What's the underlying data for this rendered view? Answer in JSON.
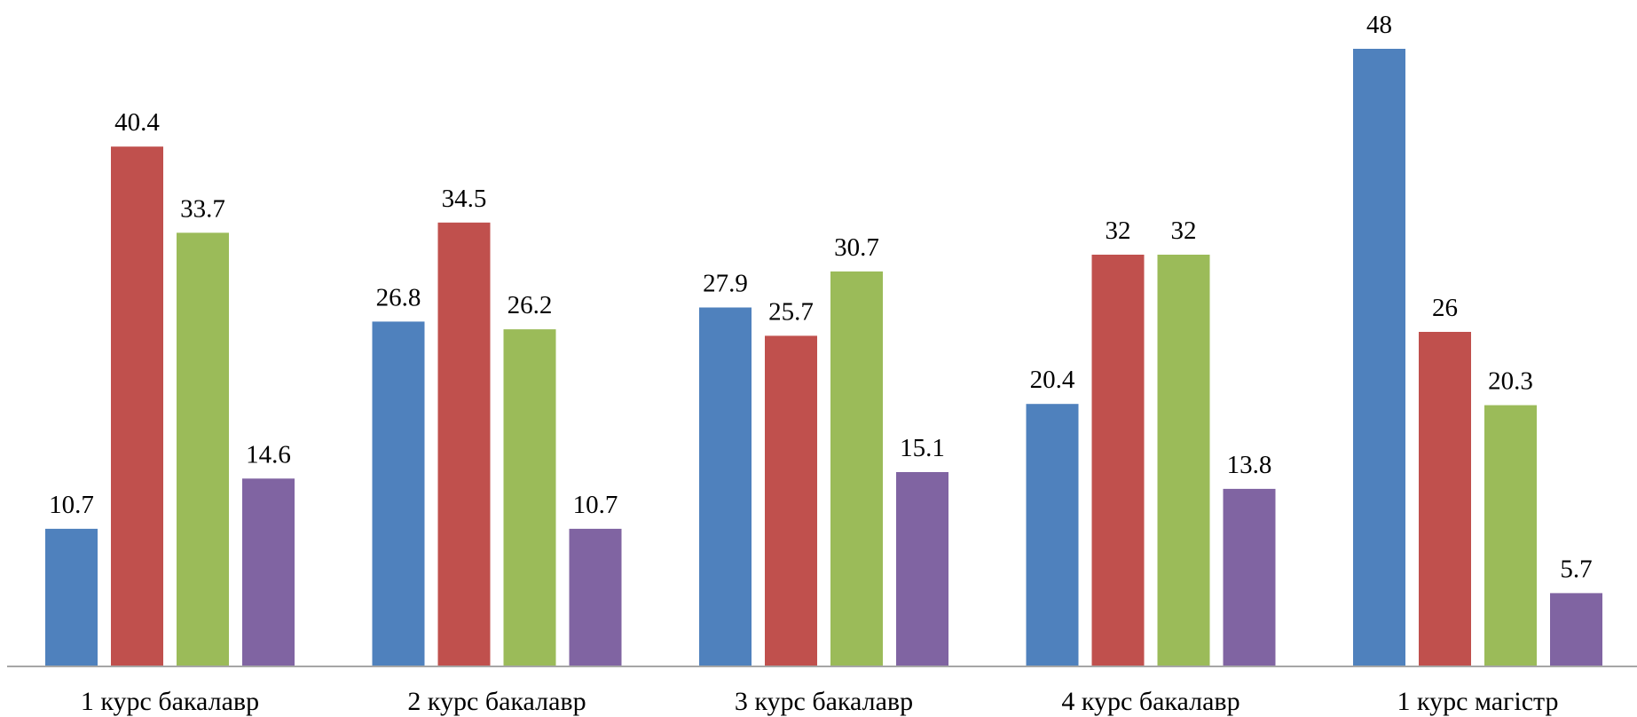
{
  "chart_data": {
    "type": "bar",
    "categories": [
      "1 курс бакалавр",
      "2 курс бакалавр",
      "3 курс бакалавр",
      "4 курс бакалавр",
      "1 курс магістр"
    ],
    "series": [
      {
        "color": "#4F81BD",
        "values": [
          10.7,
          26.8,
          27.9,
          20.4,
          48
        ]
      },
      {
        "color": "#C0504D",
        "values": [
          40.4,
          34.5,
          25.7,
          32,
          26
        ]
      },
      {
        "color": "#9BBB59",
        "values": [
          33.7,
          26.2,
          30.7,
          32,
          20.3
        ]
      },
      {
        "color": "#8064A2",
        "values": [
          14.6,
          10.7,
          15.1,
          13.8,
          5.7
        ]
      }
    ],
    "ylim": [
      0,
      48
    ],
    "grid": false,
    "legend": "none",
    "data_labels": true,
    "axis_color": "#A6A6A6"
  }
}
